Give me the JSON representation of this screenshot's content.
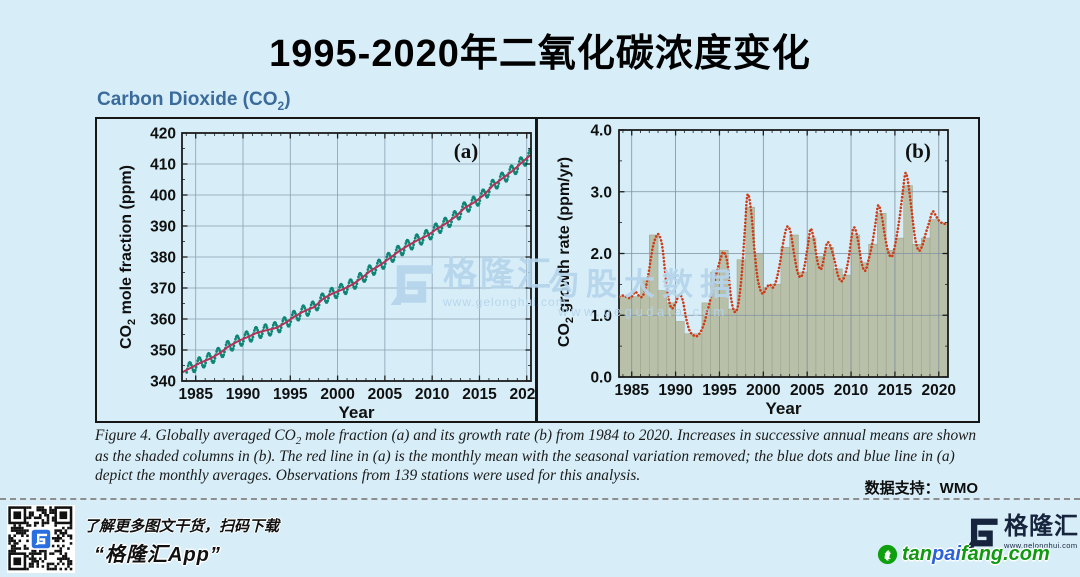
{
  "page": {
    "title": "1995-2020年二氧化碳浓度变化",
    "data_support": "数据支持：WMO"
  },
  "figure": {
    "heading": {
      "pre": "Carbon Dioxide (CO",
      "sub": "2",
      "post": ")"
    },
    "caption": {
      "pre": "Figure 4. Globally averaged CO",
      "sub": "2",
      "post": " mole fraction (a) and its growth rate (b) from 1984 to 2020. Increases in successive annual means are shown as the shaded columns in (b). The red line in (a) is the monthly mean with the seasonal variation removed; the blue dots and blue line in (a) depict the monthly averages. Observations from 139 stations were used for this analysis."
    }
  },
  "watermarks": {
    "gelonghui": {
      "name": "格隆汇",
      "url": "www.gelonghui.com"
    },
    "gegudata": {
      "name": "勾股大数据",
      "url": "www.gegudata.com"
    },
    "tanpaifang": {
      "icon_letter": "t",
      "parts": [
        {
          "text": "tan",
          "color": "#129912"
        },
        {
          "text": "pai",
          "color": "#2e62d9"
        },
        {
          "text": "fang.com",
          "color": "#129912"
        }
      ]
    }
  },
  "footer": {
    "qr_caption_line1": "了解更多图文干货，扫码下载",
    "qr_caption_line2": "“格隆汇App”",
    "logo_name": "格隆汇",
    "logo_url": "www.gelonghui.com"
  },
  "colors": {
    "background": "#d7eef8",
    "heading_blue": "#3a6b9c",
    "trend_red": "#b23357",
    "monthly_teal": "#0e8575",
    "growth_red": "#ce3b16",
    "bar_fill": "#b9c0aa",
    "watermark_blue": "#b5d4ec",
    "logo_navy": "#17243d"
  },
  "chart_data": [
    {
      "type": "line",
      "panel_label": "(a)",
      "ylabel": {
        "pre": "CO",
        "sub": "2",
        "post": " mole fraction (ppm)"
      },
      "xlabel": "Year",
      "xlim": [
        1983.55,
        2020.45
      ],
      "ylim": [
        340,
        420
      ],
      "grid": true,
      "xticks": {
        "values": [
          1985,
          1990,
          1995,
          2000,
          2005,
          2010,
          2015,
          2020
        ],
        "labels": [
          "1985",
          "1990",
          "1995",
          "2000",
          "2005",
          "2010",
          "2015",
          "2020"
        ]
      },
      "yticks": {
        "values": [
          340,
          350,
          360,
          370,
          380,
          390,
          400,
          410,
          420
        ],
        "labels": [
          "340",
          "350",
          "360",
          "370",
          "380",
          "390",
          "400",
          "410",
          "420"
        ]
      },
      "annual_trend": {
        "name": "monthly mean with seasonal variation removed (red line)",
        "color": "#b23357",
        "start_year": 1984,
        "values": [
          344.3,
          345.9,
          347.2,
          348.9,
          351.2,
          352.9,
          354.2,
          355.6,
          356.4,
          357.1,
          358.8,
          360.9,
          362.6,
          363.8,
          366.6,
          368.3,
          369.5,
          371.0,
          373.1,
          375.6,
          377.4,
          379.6,
          381.9,
          383.8,
          385.5,
          386.9,
          389.1,
          390.9,
          393.1,
          396.0,
          397.7,
          400.1,
          403.3,
          405.5,
          407.8,
          410.5,
          413.2
        ]
      },
      "monthly": {
        "name": "monthly averages (blue dots and blue line)",
        "color": "#0e8575",
        "seasonal_amplitude_ppm": 1.9,
        "seasonal_peak_month": "May",
        "seasonal_trough_month": "Oct"
      }
    },
    {
      "type": "line+bar",
      "panel_label": "(b)",
      "ylabel": {
        "pre": "CO",
        "sub": "2",
        "post": " growth rate (ppm/yr)"
      },
      "xlabel": "Year",
      "xlim": [
        1983.55,
        2021.05
      ],
      "ylim": [
        0,
        4
      ],
      "grid": true,
      "xticks": {
        "values": [
          1985,
          1990,
          1995,
          2000,
          2005,
          2010,
          2015,
          2020
        ],
        "labels": [
          "1985",
          "1990",
          "1995",
          "2000",
          "2005",
          "2010",
          "2015",
          "2020"
        ]
      },
      "yticks": {
        "values": [
          0,
          1,
          2,
          3,
          4
        ],
        "labels": [
          "0.0",
          "1.0",
          "2.0",
          "3.0",
          "4.0"
        ]
      },
      "bars": {
        "name": "increases in successive annual means (shaded columns)",
        "fill": "#b9c0aa",
        "stroke": "#97a089",
        "start_year": 1984,
        "values": [
          1.3,
          1.3,
          1.6,
          2.3,
          1.4,
          1.2,
          0.9,
          0.7,
          0.7,
          1.2,
          1.7,
          2.05,
          1.1,
          1.9,
          2.75,
          2.0,
          1.45,
          1.5,
          2.1,
          2.3,
          1.7,
          2.25,
          1.95,
          2.1,
          1.75,
          1.65,
          2.3,
          1.85,
          2.15,
          2.65,
          2.05,
          2.25,
          3.1,
          2.15,
          2.25,
          2.55,
          2.5
        ]
      },
      "curve": {
        "name": "monthly growth rate (red dotted line)",
        "color": "#ce3b16",
        "points": [
          [
            1983.6,
            1.3
          ],
          [
            1984.1,
            1.32
          ],
          [
            1984.6,
            1.28
          ],
          [
            1985.0,
            1.3
          ],
          [
            1985.4,
            1.38
          ],
          [
            1985.8,
            1.32
          ],
          [
            1986.2,
            1.3
          ],
          [
            1986.6,
            1.45
          ],
          [
            1987.0,
            1.75
          ],
          [
            1987.4,
            2.1
          ],
          [
            1987.8,
            2.28
          ],
          [
            1988.1,
            2.3
          ],
          [
            1988.5,
            2.1
          ],
          [
            1989.0,
            1.45
          ],
          [
            1989.5,
            1.12
          ],
          [
            1990.0,
            1.2
          ],
          [
            1990.4,
            1.33
          ],
          [
            1990.8,
            1.25
          ],
          [
            1991.2,
            0.95
          ],
          [
            1991.6,
            0.75
          ],
          [
            1992.0,
            0.68
          ],
          [
            1992.4,
            0.66
          ],
          [
            1992.8,
            0.72
          ],
          [
            1993.2,
            0.85
          ],
          [
            1993.7,
            1.1
          ],
          [
            1994.2,
            1.4
          ],
          [
            1994.7,
            1.7
          ],
          [
            1995.2,
            1.95
          ],
          [
            1995.5,
            2.02
          ],
          [
            1995.9,
            1.85
          ],
          [
            1996.3,
            1.3
          ],
          [
            1996.7,
            1.06
          ],
          [
            1997.1,
            1.15
          ],
          [
            1997.5,
            1.6
          ],
          [
            1997.9,
            2.4
          ],
          [
            1998.2,
            2.95
          ],
          [
            1998.6,
            2.7
          ],
          [
            1999.0,
            2.05
          ],
          [
            1999.4,
            1.55
          ],
          [
            1999.9,
            1.35
          ],
          [
            2000.3,
            1.43
          ],
          [
            2000.7,
            1.5
          ],
          [
            2001.1,
            1.45
          ],
          [
            2001.5,
            1.58
          ],
          [
            2001.9,
            1.85
          ],
          [
            2002.3,
            2.2
          ],
          [
            2002.7,
            2.43
          ],
          [
            2003.1,
            2.35
          ],
          [
            2003.5,
            2.0
          ],
          [
            2003.9,
            1.7
          ],
          [
            2004.3,
            1.62
          ],
          [
            2004.7,
            1.8
          ],
          [
            2005.1,
            2.15
          ],
          [
            2005.4,
            2.4
          ],
          [
            2005.8,
            2.2
          ],
          [
            2006.2,
            1.85
          ],
          [
            2006.6,
            1.75
          ],
          [
            2007.0,
            2.0
          ],
          [
            2007.3,
            2.18
          ],
          [
            2007.7,
            2.1
          ],
          [
            2008.1,
            1.9
          ],
          [
            2008.5,
            1.65
          ],
          [
            2008.9,
            1.55
          ],
          [
            2009.3,
            1.65
          ],
          [
            2009.7,
            1.9
          ],
          [
            2010.1,
            2.3
          ],
          [
            2010.4,
            2.42
          ],
          [
            2010.8,
            2.2
          ],
          [
            2011.2,
            1.85
          ],
          [
            2011.6,
            1.72
          ],
          [
            2012.0,
            1.9
          ],
          [
            2012.4,
            2.15
          ],
          [
            2012.8,
            2.5
          ],
          [
            2013.1,
            2.78
          ],
          [
            2013.5,
            2.6
          ],
          [
            2013.9,
            2.25
          ],
          [
            2014.3,
            2.0
          ],
          [
            2014.7,
            1.96
          ],
          [
            2015.1,
            2.2
          ],
          [
            2015.5,
            2.55
          ],
          [
            2015.9,
            3.0
          ],
          [
            2016.2,
            3.3
          ],
          [
            2016.5,
            3.15
          ],
          [
            2016.9,
            2.7
          ],
          [
            2017.3,
            2.25
          ],
          [
            2017.7,
            2.05
          ],
          [
            2018.1,
            2.12
          ],
          [
            2018.5,
            2.32
          ],
          [
            2018.9,
            2.5
          ],
          [
            2019.3,
            2.68
          ],
          [
            2019.7,
            2.6
          ],
          [
            2020.1,
            2.52
          ],
          [
            2020.6,
            2.48
          ],
          [
            2021.0,
            2.5
          ]
        ]
      }
    }
  ]
}
